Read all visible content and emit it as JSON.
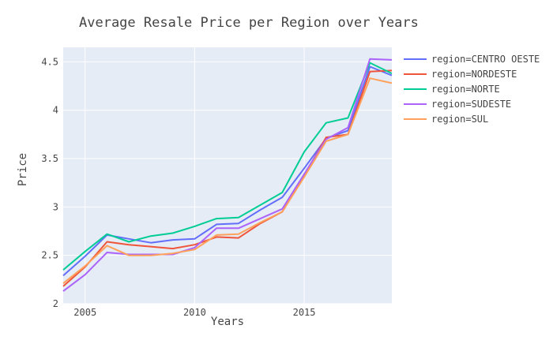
{
  "chart_data": {
    "type": "line",
    "title": "Average Resale Price per Region over Years",
    "xlabel": "Years",
    "ylabel": "Price",
    "xlim": [
      2004,
      2019
    ],
    "ylim": [
      2,
      4.65
    ],
    "x_ticks": [
      2005,
      2010,
      2015
    ],
    "y_ticks": [
      2,
      2.5,
      3,
      3.5,
      4,
      4.5
    ],
    "x": [
      2004,
      2005,
      2006,
      2007,
      2008,
      2009,
      2010,
      2011,
      2012,
      2013,
      2014,
      2015,
      2016,
      2017,
      2018,
      2019
    ],
    "series": [
      {
        "name": "region=CENTRO OESTE",
        "color": "#636efa",
        "values": [
          2.29,
          2.49,
          2.71,
          2.67,
          2.63,
          2.66,
          2.67,
          2.82,
          2.83,
          2.97,
          3.1,
          3.4,
          3.71,
          3.79,
          4.45,
          4.36
        ]
      },
      {
        "name": "region=NORDESTE",
        "color": "#EF553B",
        "values": [
          2.18,
          2.38,
          2.64,
          2.61,
          2.59,
          2.57,
          2.61,
          2.69,
          2.68,
          2.83,
          2.95,
          3.33,
          3.72,
          3.75,
          4.4,
          4.41
        ]
      },
      {
        "name": "region=NORTE",
        "color": "#00cc96",
        "values": [
          2.35,
          2.54,
          2.72,
          2.64,
          2.7,
          2.73,
          2.8,
          2.88,
          2.89,
          3.02,
          3.15,
          3.57,
          3.87,
          3.92,
          4.49,
          4.38
        ]
      },
      {
        "name": "region=SUDESTE",
        "color": "#ab63fa",
        "values": [
          2.13,
          2.3,
          2.53,
          2.51,
          2.51,
          2.51,
          2.58,
          2.78,
          2.78,
          2.88,
          2.98,
          3.34,
          3.7,
          3.82,
          4.53,
          4.52
        ]
      },
      {
        "name": "region=SUL",
        "color": "#FFA15A",
        "values": [
          2.21,
          2.39,
          2.6,
          2.5,
          2.5,
          2.52,
          2.56,
          2.71,
          2.72,
          2.84,
          2.95,
          3.31,
          3.68,
          3.75,
          4.33,
          4.28
        ]
      }
    ]
  }
}
